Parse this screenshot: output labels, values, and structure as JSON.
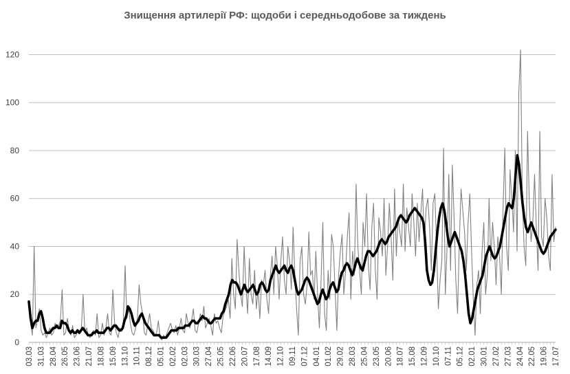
{
  "chart_data": {
    "type": "line",
    "title": "Знищення артилерії РФ: щодоби і середньодобове за тиждень",
    "ylim": [
      0,
      125
    ],
    "yticks": [
      0,
      20,
      40,
      60,
      80,
      100,
      120
    ],
    "grid": true,
    "x_tick_labels": [
      "03.03",
      "31.03",
      "28.04",
      "26.05",
      "23.06",
      "21.07",
      "18.08",
      "15.09",
      "13.10",
      "10.11",
      "08.12",
      "05.01",
      "02.02",
      "02.03",
      "30.03",
      "27.04",
      "25.05",
      "22.06",
      "20.07",
      "17.08",
      "14.09",
      "12.10",
      "09.11",
      "07.12",
      "04.01",
      "01.02",
      "29.02",
      "28.03",
      "25.04",
      "23.05",
      "20.06",
      "18.07",
      "15.08",
      "12.09",
      "10.10",
      "07.11",
      "05.12",
      "02.01",
      "30.01",
      "27.02",
      "27.03",
      "24.04",
      "22.05",
      "19.06",
      "17.07"
    ],
    "series": [
      {
        "role": "daily",
        "color": "#808080",
        "values": [
          17,
          8,
          3,
          40,
          6,
          10,
          14,
          5,
          3,
          4,
          2,
          4,
          6,
          3,
          4,
          8,
          6,
          7,
          9,
          22,
          3,
          4,
          10,
          5,
          3,
          7,
          2,
          3,
          5,
          4,
          6,
          20,
          4,
          6,
          3,
          2,
          4,
          5,
          3,
          12,
          2,
          3,
          8,
          3,
          6,
          12,
          4,
          3,
          22,
          8,
          4,
          2,
          6,
          5,
          9,
          32,
          10,
          14,
          8,
          4,
          3,
          6,
          10,
          24,
          16,
          12,
          4,
          3,
          8,
          12,
          6,
          5,
          3,
          4,
          9,
          2,
          1,
          3,
          2,
          4,
          6,
          8,
          5,
          4,
          7,
          3,
          6,
          10,
          5,
          4,
          12,
          8,
          6,
          9,
          14,
          5,
          4,
          8,
          12,
          9,
          15,
          6,
          8,
          10,
          7,
          3,
          12,
          8,
          9,
          6,
          4,
          11,
          13,
          15,
          18,
          10,
          35,
          20,
          14,
          43,
          30,
          20,
          15,
          40,
          24,
          12,
          35,
          20,
          16,
          30,
          14,
          22,
          10,
          26,
          24,
          30,
          18,
          12,
          28,
          36,
          20,
          40,
          32,
          18,
          34,
          44,
          26,
          20,
          40,
          34,
          22,
          48,
          28,
          14,
          3,
          34,
          40,
          20,
          16,
          24,
          46,
          28,
          30,
          18,
          38,
          20,
          6,
          26,
          50,
          12,
          5,
          30,
          18,
          45,
          40,
          22,
          5,
          28,
          38,
          45,
          20,
          30,
          44,
          54,
          18,
          38,
          28,
          66,
          40,
          30,
          20,
          50,
          40,
          62,
          32,
          22,
          48,
          58,
          30,
          18,
          52,
          46,
          36,
          60,
          28,
          40,
          58,
          44,
          26,
          64,
          36,
          52,
          46,
          40,
          66,
          38,
          56,
          48,
          40,
          62,
          50,
          36,
          58,
          42,
          54,
          64,
          40,
          56,
          60,
          48,
          30,
          58,
          62,
          40,
          14,
          26,
          34,
          81,
          20,
          40,
          70,
          30,
          74,
          52,
          26,
          12,
          42,
          64,
          55,
          46,
          30,
          50,
          62,
          38,
          18,
          3,
          24,
          30,
          12,
          38,
          50,
          20,
          28,
          60,
          34,
          50,
          40,
          24,
          44,
          36,
          20,
          56,
          81,
          40,
          30,
          72,
          60,
          46,
          80,
          38,
          104,
          122,
          60,
          40,
          32,
          88,
          58,
          42,
          50,
          70,
          48,
          30,
          88,
          44,
          40,
          60,
          52,
          36,
          30,
          70,
          42,
          48
        ]
      },
      {
        "role": "weekly_average",
        "color": "#000000",
        "values": [
          17,
          10,
          6,
          8,
          9,
          9,
          12,
          13,
          10,
          6,
          4,
          4,
          4,
          5,
          6,
          6,
          7,
          6,
          6,
          9,
          8,
          8,
          7,
          5,
          4,
          5,
          4,
          4,
          5,
          4,
          5,
          6,
          5,
          4,
          3,
          3,
          3,
          4,
          4,
          5,
          4,
          4,
          4,
          4,
          5,
          6,
          6,
          5,
          6,
          7,
          7,
          6,
          5,
          5,
          6,
          9,
          11,
          15,
          14,
          12,
          9,
          7,
          8,
          9,
          11,
          12,
          10,
          8,
          7,
          6,
          5,
          4,
          3,
          3,
          3,
          3,
          2,
          2,
          2,
          2,
          3,
          4,
          5,
          5,
          5,
          5,
          6,
          6,
          6,
          6,
          7,
          7,
          7,
          8,
          9,
          9,
          8,
          8,
          9,
          10,
          11,
          10,
          10,
          9,
          8,
          8,
          9,
          10,
          10,
          10,
          10,
          12,
          13,
          16,
          18,
          20,
          24,
          26,
          25,
          25,
          24,
          22,
          20,
          22,
          24,
          22,
          21,
          22,
          23,
          24,
          22,
          20,
          21,
          24,
          25,
          24,
          22,
          21,
          22,
          26,
          28,
          30,
          32,
          30,
          29,
          30,
          31,
          32,
          30,
          29,
          31,
          32,
          30,
          26,
          22,
          20,
          21,
          22,
          24,
          26,
          27,
          26,
          24,
          22,
          20,
          18,
          16,
          17,
          20,
          22,
          20,
          18,
          19,
          22,
          24,
          25,
          23,
          21,
          22,
          26,
          29,
          30,
          32,
          33,
          32,
          30,
          28,
          30,
          33,
          35,
          33,
          31,
          30,
          33,
          36,
          38,
          38,
          37,
          36,
          37,
          38,
          40,
          42,
          43,
          42,
          41,
          42,
          44,
          45,
          46,
          47,
          48,
          50,
          52,
          53,
          52,
          51,
          50,
          51,
          53,
          54,
          55,
          56,
          55,
          54,
          53,
          52,
          50,
          42,
          30,
          26,
          24,
          25,
          30,
          38,
          46,
          52,
          56,
          58,
          55,
          50,
          44,
          40,
          42,
          44,
          46,
          44,
          42,
          40,
          38,
          34,
          28,
          20,
          12,
          8,
          10,
          14,
          18,
          22,
          24,
          26,
          28,
          32,
          36,
          38,
          40,
          38,
          36,
          35,
          36,
          38,
          40,
          44,
          48,
          52,
          56,
          58,
          57,
          56,
          60,
          70,
          78,
          74,
          66,
          58,
          52,
          48,
          46,
          48,
          50,
          48,
          46,
          44,
          42,
          40,
          38,
          37,
          38,
          40,
          42,
          44,
          45,
          46,
          47
        ]
      }
    ]
  }
}
